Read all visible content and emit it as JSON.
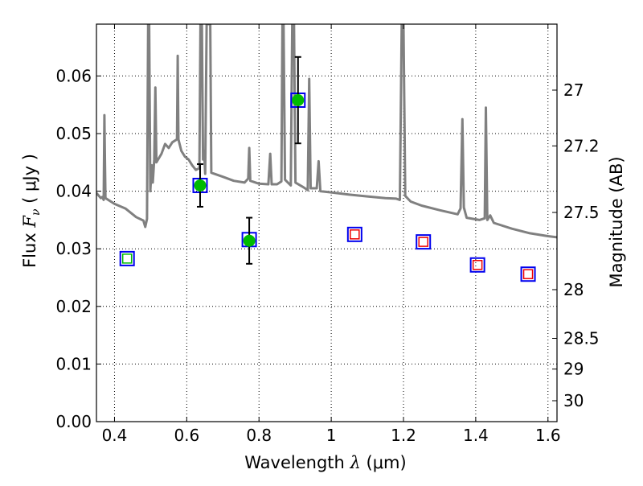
{
  "chart_data": {
    "type": "scatter",
    "xlabel": {
      "prefix": "Wavelength  ",
      "symbol": "λ",
      "units": " (μm)"
    },
    "ylabel": {
      "prefix": "Flux  ",
      "symbol": "F",
      "subscript": "ν",
      "units": "  ( μJy )"
    },
    "ylabel_right": "Magnitude (AB)",
    "xlim": [
      0.35,
      1.625
    ],
    "ylim": [
      0.0,
      0.069
    ],
    "x_ticks": [
      0.4,
      0.6,
      0.8,
      1.0,
      1.2,
      1.4,
      1.6
    ],
    "x_tick_labels": [
      "0.4",
      "0.6",
      "0.8",
      "1",
      "1.2",
      "1.4",
      "1.6"
    ],
    "y_ticks": [
      0.0,
      0.01,
      0.02,
      0.03,
      0.04,
      0.05,
      0.06
    ],
    "y_tick_labels": [
      "0.00",
      "0.01",
      "0.02",
      "0.03",
      "0.04",
      "0.05",
      "0.06"
    ],
    "mag_ticks": [
      27,
      27.2,
      27.5,
      28,
      28.5,
      29,
      30
    ],
    "mag_tick_labels": [
      "27",
      "27.2",
      "27.5",
      "28",
      "28.5",
      "29",
      "30"
    ],
    "grid": true,
    "colors": {
      "sed_line": "#808080",
      "observed_point": "#00bb00",
      "model_box_blue": "#0000ee",
      "model_box_red": "#ee0000",
      "green_box": "#00bb00",
      "error_bar": "#000000",
      "grid": "#000000"
    },
    "series": [
      {
        "kind": "line",
        "points": [
          [
            0.35,
            0.0397
          ],
          [
            0.362,
            0.0388
          ],
          [
            0.366,
            0.039
          ],
          [
            0.37,
            0.0385
          ],
          [
            0.372,
            0.0532
          ],
          [
            0.373,
            0.0482
          ],
          [
            0.375,
            0.0388
          ],
          [
            0.4,
            0.0378
          ],
          [
            0.43,
            0.037
          ],
          [
            0.46,
            0.0355
          ],
          [
            0.48,
            0.0349
          ],
          [
            0.485,
            0.0338
          ],
          [
            0.49,
            0.0352
          ],
          [
            0.493,
            0.069
          ],
          [
            0.496,
            0.069
          ],
          [
            0.499,
            0.04
          ],
          [
            0.503,
            0.0445
          ],
          [
            0.506,
            0.0415
          ],
          [
            0.51,
            0.0455
          ],
          [
            0.513,
            0.058
          ],
          [
            0.516,
            0.045
          ],
          [
            0.53,
            0.0465
          ],
          [
            0.54,
            0.0482
          ],
          [
            0.55,
            0.0475
          ],
          [
            0.56,
            0.0485
          ],
          [
            0.573,
            0.049
          ],
          [
            0.575,
            0.0635
          ],
          [
            0.577,
            0.049
          ],
          [
            0.585,
            0.047
          ],
          [
            0.595,
            0.046
          ],
          [
            0.605,
            0.0455
          ],
          [
            0.615,
            0.0445
          ],
          [
            0.625,
            0.0437
          ],
          [
            0.635,
            0.044
          ],
          [
            0.638,
            0.069
          ],
          [
            0.642,
            0.069
          ],
          [
            0.645,
            0.0455
          ],
          [
            0.648,
            0.047
          ],
          [
            0.651,
            0.043
          ],
          [
            0.655,
            0.069
          ],
          [
            0.658,
            0.069
          ],
          [
            0.66,
            0.069
          ],
          [
            0.665,
            0.069
          ],
          [
            0.668,
            0.0432
          ],
          [
            0.7,
            0.0425
          ],
          [
            0.73,
            0.0418
          ],
          [
            0.76,
            0.0415
          ],
          [
            0.77,
            0.0422
          ],
          [
            0.773,
            0.0475
          ],
          [
            0.776,
            0.0418
          ],
          [
            0.8,
            0.0413
          ],
          [
            0.826,
            0.0412
          ],
          [
            0.831,
            0.0465
          ],
          [
            0.835,
            0.0412
          ],
          [
            0.85,
            0.0412
          ],
          [
            0.862,
            0.0417
          ],
          [
            0.865,
            0.069
          ],
          [
            0.868,
            0.069
          ],
          [
            0.872,
            0.042
          ],
          [
            0.88,
            0.0415
          ],
          [
            0.888,
            0.041
          ],
          [
            0.892,
            0.069
          ],
          [
            0.897,
            0.069
          ],
          [
            0.901,
            0.0415
          ],
          [
            0.92,
            0.0408
          ],
          [
            0.935,
            0.0402
          ],
          [
            0.939,
            0.0595
          ],
          [
            0.943,
            0.0405
          ],
          [
            0.96,
            0.0405
          ],
          [
            0.965,
            0.0452
          ],
          [
            0.97,
            0.04
          ],
          [
            1.0,
            0.0398
          ],
          [
            1.05,
            0.0394
          ],
          [
            1.1,
            0.0391
          ],
          [
            1.15,
            0.0388
          ],
          [
            1.18,
            0.0387
          ],
          [
            1.19,
            0.0385
          ],
          [
            1.195,
            0.069
          ],
          [
            1.2,
            0.069
          ],
          [
            1.205,
            0.0392
          ],
          [
            1.22,
            0.0382
          ],
          [
            1.25,
            0.0375
          ],
          [
            1.3,
            0.0367
          ],
          [
            1.35,
            0.036
          ],
          [
            1.358,
            0.037
          ],
          [
            1.363,
            0.0525
          ],
          [
            1.367,
            0.0372
          ],
          [
            1.375,
            0.0354
          ],
          [
            1.41,
            0.035
          ],
          [
            1.425,
            0.0353
          ],
          [
            1.428,
            0.0545
          ],
          [
            1.432,
            0.035
          ],
          [
            1.44,
            0.0358
          ],
          [
            1.45,
            0.0345
          ],
          [
            1.5,
            0.0335
          ],
          [
            1.55,
            0.0327
          ],
          [
            1.6,
            0.0322
          ],
          [
            1.625,
            0.032
          ]
        ]
      },
      {
        "kind": "observed",
        "points": [
          {
            "x": 0.637,
            "y": 0.041,
            "yerr": 0.0037
          },
          {
            "x": 0.773,
            "y": 0.0314,
            "yerr": 0.004
          },
          {
            "x": 0.908,
            "y": 0.0558,
            "yerr": 0.0075
          }
        ]
      },
      {
        "kind": "model-box",
        "points": [
          {
            "x": 0.435,
            "y": 0.0283,
            "inner": "green"
          },
          {
            "x": 0.637,
            "y": 0.041,
            "inner": "none"
          },
          {
            "x": 0.773,
            "y": 0.0316,
            "inner": "none"
          },
          {
            "x": 0.908,
            "y": 0.0558,
            "inner": "none"
          },
          {
            "x": 1.065,
            "y": 0.0325,
            "inner": "red"
          },
          {
            "x": 1.255,
            "y": 0.0312,
            "inner": "red"
          },
          {
            "x": 1.405,
            "y": 0.0272,
            "inner": "red"
          },
          {
            "x": 1.545,
            "y": 0.0256,
            "inner": "red"
          }
        ]
      }
    ]
  }
}
